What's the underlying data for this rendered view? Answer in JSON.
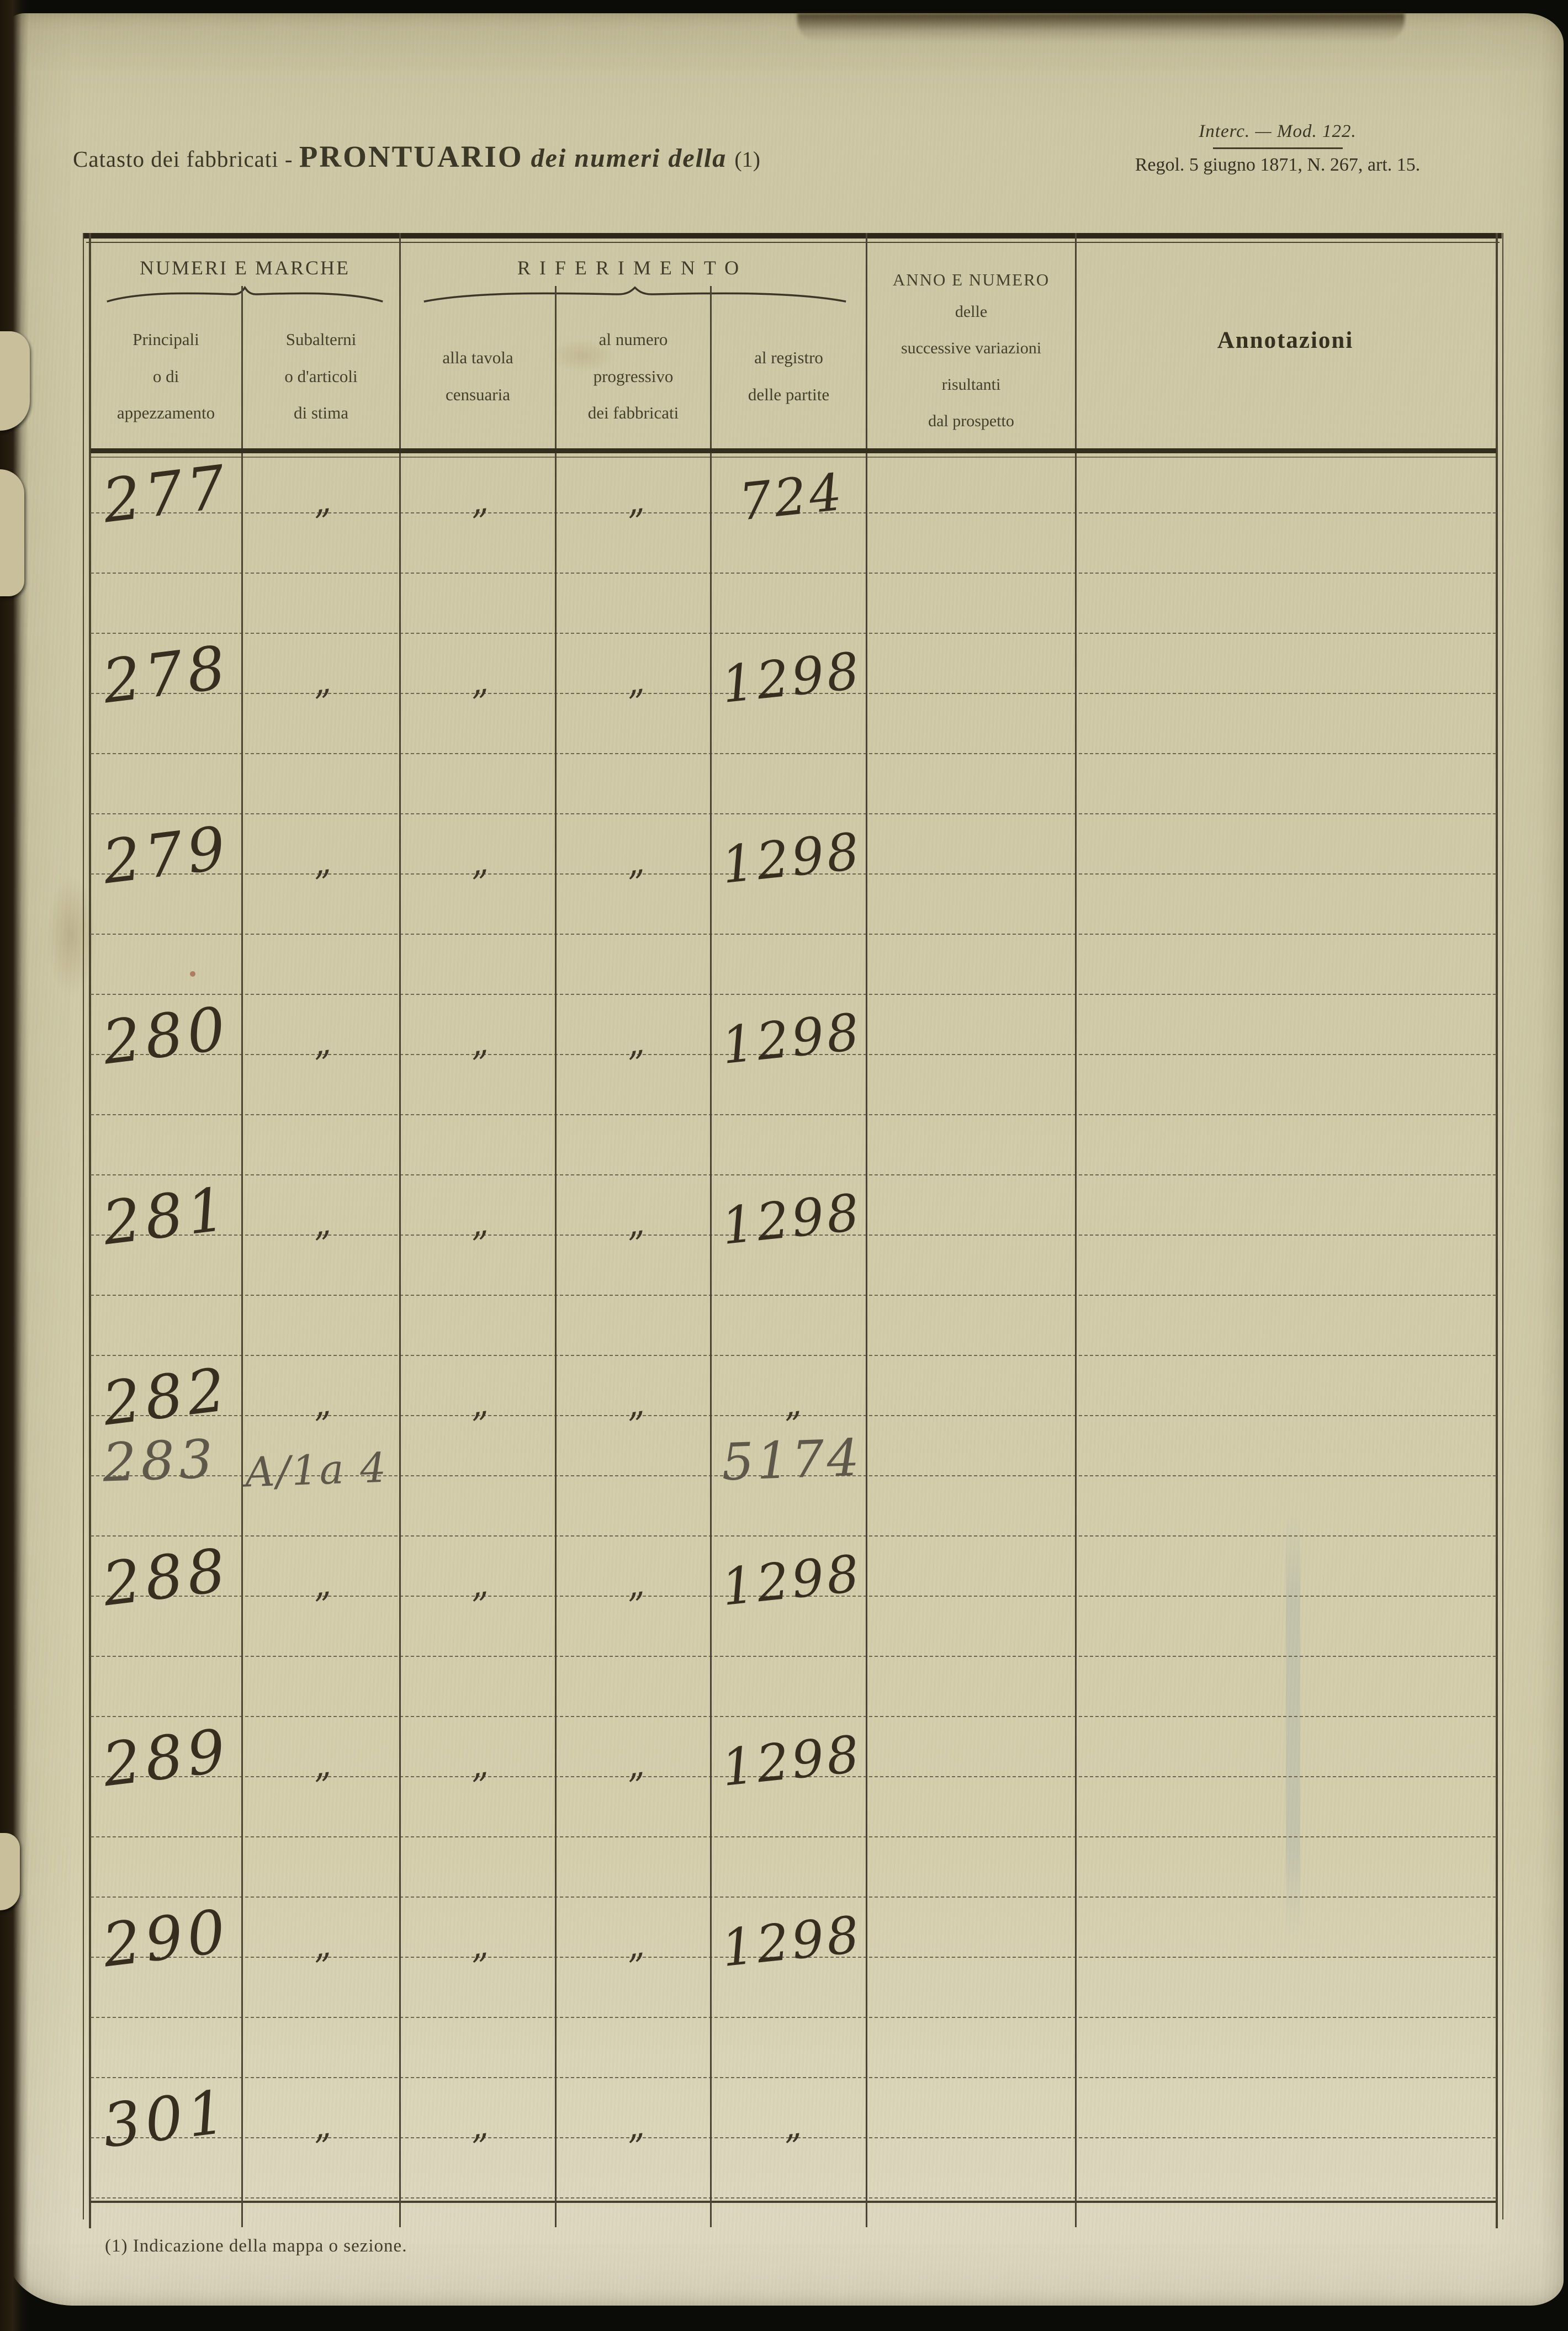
{
  "titles": {
    "left_prefix": "Catasto dei fabbricati - ",
    "left_main": "PRONTUARIO",
    "left_italic": " dei numeri della ",
    "left_ref": "(1)",
    "right_line1": "Interc. — Mod. 122.",
    "right_line2": "Regol. 5 giugno 1871, N. 267, art. 15."
  },
  "table": {
    "groups": [
      {
        "label": "NUMERI E MARCHE"
      },
      {
        "label": "RIFERIMENTO"
      }
    ],
    "columns": [
      {
        "id": "principali",
        "lines": [
          "Principali",
          "o di",
          "appezzamento"
        ]
      },
      {
        "id": "subalterni",
        "lines": [
          "Subalterni",
          "o d'articoli",
          "di stima"
        ]
      },
      {
        "id": "tavola",
        "lines": [
          "alla tavola",
          "censuaria"
        ]
      },
      {
        "id": "numero-progressivo",
        "lines": [
          "al numero",
          "progressivo",
          "dei fabbricati"
        ]
      },
      {
        "id": "registro",
        "lines": [
          "al registro",
          "delle partite"
        ]
      },
      {
        "id": "variazioni",
        "title": "ANNO E NUMERO",
        "lines": [
          "delle",
          "successive variazioni",
          "risultanti",
          "dal prospetto"
        ]
      },
      {
        "id": "annotazioni",
        "label": "Annotazioni"
      }
    ],
    "ditto_mark": "„",
    "rows": [
      {
        "line": 1,
        "principale": "277",
        "subalterno": "„",
        "tavola": "„",
        "progressivo": "„",
        "registro": "724",
        "variazioni": "",
        "annotazioni": "",
        "ink": "dark"
      },
      {
        "line": 4,
        "principale": "278",
        "subalterno": "„",
        "tavola": "„",
        "progressivo": "„",
        "registro": "1298",
        "variazioni": "",
        "annotazioni": "",
        "ink": "dark"
      },
      {
        "line": 7,
        "principale": "279",
        "subalterno": "„",
        "tavola": "„",
        "progressivo": "„",
        "registro": "1298",
        "variazioni": "",
        "annotazioni": "",
        "ink": "dark"
      },
      {
        "line": 10,
        "principale": "280",
        "subalterno": "„",
        "tavola": "„",
        "progressivo": "„",
        "registro": "1298",
        "variazioni": "",
        "annotazioni": "",
        "ink": "dark"
      },
      {
        "line": 13,
        "principale": "281",
        "subalterno": "„",
        "tavola": "„",
        "progressivo": "„",
        "registro": "1298",
        "variazioni": "",
        "annotazioni": "",
        "ink": "dark"
      },
      {
        "line": 16,
        "principale": "282",
        "subalterno": "„",
        "tavola": "„",
        "progressivo": "„",
        "registro": "„",
        "variazioni": "",
        "annotazioni": "",
        "ink": "dark"
      },
      {
        "line": 17,
        "principale": "283",
        "subalterno": "A/1a 4",
        "tavola": "",
        "progressivo": "",
        "registro": "5174",
        "variazioni": "",
        "annotazioni": "",
        "ink": "grey"
      },
      {
        "line": 19,
        "principale": "288",
        "subalterno": "„",
        "tavola": "„",
        "progressivo": "„",
        "registro": "1298",
        "variazioni": "",
        "annotazioni": "",
        "ink": "dark"
      },
      {
        "line": 22,
        "principale": "289",
        "subalterno": "„",
        "tavola": "„",
        "progressivo": "„",
        "registro": "1298",
        "variazioni": "",
        "annotazioni": "",
        "ink": "dark"
      },
      {
        "line": 25,
        "principale": "290",
        "subalterno": "„",
        "tavola": "„",
        "progressivo": "„",
        "registro": "1298",
        "variazioni": "",
        "annotazioni": "",
        "ink": "dark"
      },
      {
        "line": 28,
        "principale": "301",
        "subalterno": "„",
        "tavola": "„",
        "progressivo": "„",
        "registro": "„",
        "variazioni": "",
        "annotazioni": "",
        "ink": "dark"
      }
    ]
  },
  "footnote": "(1) Indicazione della mappa o sezione."
}
